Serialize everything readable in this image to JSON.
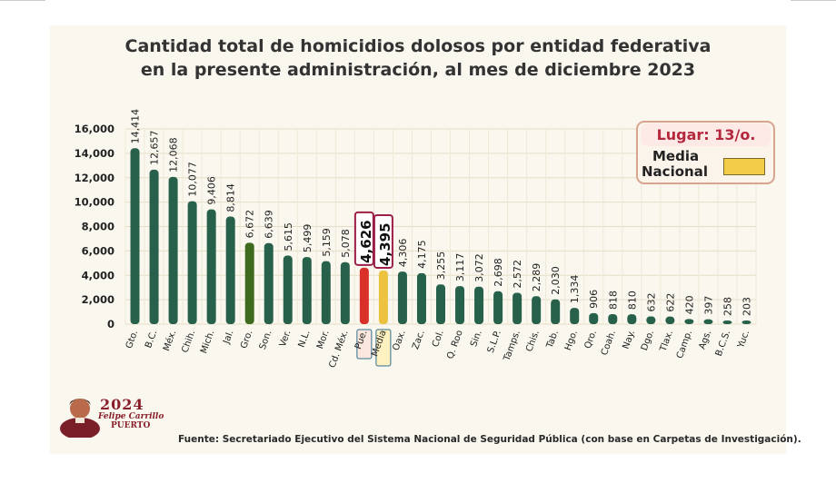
{
  "title_line1": "Cantidad total de homicidios dolosos por entidad federativa",
  "title_line2": "en la presente administración, al mes de diciembre 2023",
  "legend": {
    "lugar": "Lugar: 13/o.",
    "media_line1": "Media",
    "media_line2": "Nacional",
    "media_color": "#f3cc48"
  },
  "logo": {
    "year": "2024",
    "name": "Felipe Carrillo",
    "place": "PUERTO"
  },
  "source": "Fuente:  Secretariado Ejecutivo del Sistema Nacional de Seguridad Pública (con base en Carpetas de Investigación).",
  "colors": {
    "default": "#27614b",
    "guerrero": "#3f6b1e",
    "puebla": "#d9302a",
    "media": "#ecc23f",
    "highlight_border": "#9b1f47"
  },
  "chart_data": {
    "type": "bar",
    "title": "Cantidad total de homicidios dolosos por entidad federativa en la presente administración, al mes de diciembre 2023",
    "ylim": [
      0,
      16000
    ],
    "yticks": [
      "0",
      "2,000",
      "4,000",
      "6,000",
      "8,000",
      "10,000",
      "12,000",
      "14,000",
      "16,000"
    ],
    "grid": true,
    "categories": [
      "Gto.",
      "B.C.",
      "Méx.",
      "Chih.",
      "Mich.",
      "Jal.",
      "Gro.",
      "Son.",
      "Ver.",
      "N.L.",
      "Mor.",
      "Cd. Méx.",
      "Pue.",
      "Media",
      "Oax.",
      "Zac.",
      "Col.",
      "Q. Roo",
      "Sin.",
      "S.L.P.",
      "Tamps.",
      "Chis.",
      "Tab.",
      "Hgo.",
      "Qro.",
      "Coah.",
      "Nay.",
      "Dgo.",
      "Tlax.",
      "Camp.",
      "Ags.",
      "B.C.S.",
      "Yuc."
    ],
    "values": [
      14414,
      12657,
      12068,
      10077,
      9406,
      8814,
      6672,
      6639,
      5615,
      5499,
      5159,
      5078,
      4626,
      4395,
      4306,
      4175,
      3255,
      3117,
      3072,
      2698,
      2572,
      2289,
      2030,
      1334,
      906,
      818,
      810,
      632,
      622,
      420,
      397,
      258,
      203
    ],
    "labels": [
      "14,414",
      "12,657",
      "12,068",
      "10,077",
      "9,406",
      "8,814",
      "6,672",
      "6,639",
      "5,615",
      "5,499",
      "5,159",
      "5,078",
      "4,626",
      "4,395",
      "4,306",
      "4,175",
      "3,255",
      "3,117",
      "3,072",
      "2,698",
      "2,572",
      "2,289",
      "2,030",
      "1,334",
      "906",
      "818",
      "810",
      "632",
      "622",
      "420",
      "397",
      "258",
      "203"
    ],
    "highlighted": [
      "Pue.",
      "Media"
    ]
  }
}
